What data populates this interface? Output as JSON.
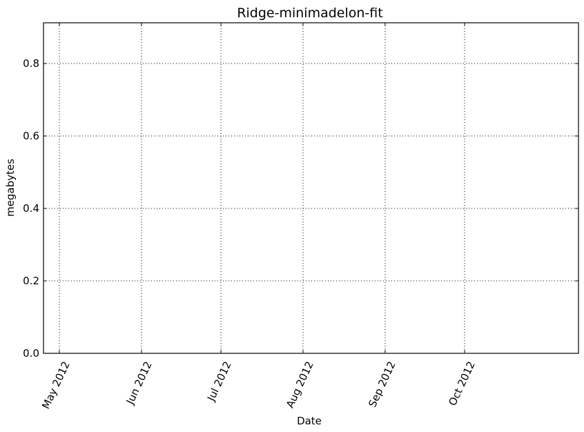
{
  "chart_data": {
    "type": "line",
    "title": "Ridge-minimadelon-fit",
    "xlabel": "Date",
    "ylabel": "megabytes",
    "x_type": "date",
    "xlim": [
      "2012-04-25",
      "2012-11-13"
    ],
    "ylim": [
      0,
      0.9125
    ],
    "x_ticks": [
      {
        "value": "2012-05-01",
        "label": "May 2012"
      },
      {
        "value": "2012-06-01",
        "label": "Jun 2012"
      },
      {
        "value": "2012-07-01",
        "label": "Jul 2012"
      },
      {
        "value": "2012-08-01",
        "label": "Aug 2012"
      },
      {
        "value": "2012-09-01",
        "label": "Sep 2012"
      },
      {
        "value": "2012-10-01",
        "label": "Oct 2012"
      }
    ],
    "y_ticks": [
      {
        "value": 0.0,
        "label": "0.0"
      },
      {
        "value": 0.2,
        "label": "0.2"
      },
      {
        "value": 0.4,
        "label": "0.4"
      },
      {
        "value": 0.6,
        "label": "0.6"
      },
      {
        "value": 0.8,
        "label": "0.8"
      }
    ],
    "grid": true,
    "series": []
  }
}
